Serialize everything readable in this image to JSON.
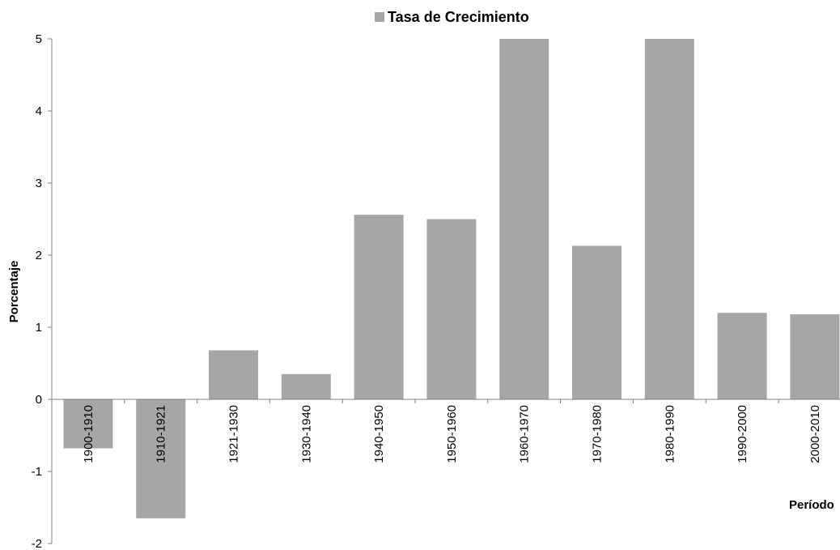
{
  "chart_data": {
    "type": "bar",
    "legend": {
      "label": "Tasa de Crecimiento",
      "position": "top"
    },
    "categories": [
      "1900-1910",
      "1910-1921",
      "1921-1930",
      "1930-1940",
      "1940-1950",
      "1950-1960",
      "1960-1970",
      "1970-1980",
      "1980-1990",
      "1990-2000",
      "2000-2010"
    ],
    "series": [
      {
        "name": "Tasa de Crecimiento",
        "values": [
          -0.68,
          -1.65,
          0.68,
          0.35,
          2.56,
          2.5,
          5.0,
          2.13,
          5.0,
          1.2,
          1.18
        ],
        "color": "#a6a6a6"
      }
    ],
    "xlabel": "Período",
    "ylabel": "Porcentaje",
    "ylim": [
      -2,
      5
    ],
    "yticks": [
      -2,
      -1,
      0,
      1,
      2,
      3,
      4,
      5
    ],
    "grid": false
  }
}
